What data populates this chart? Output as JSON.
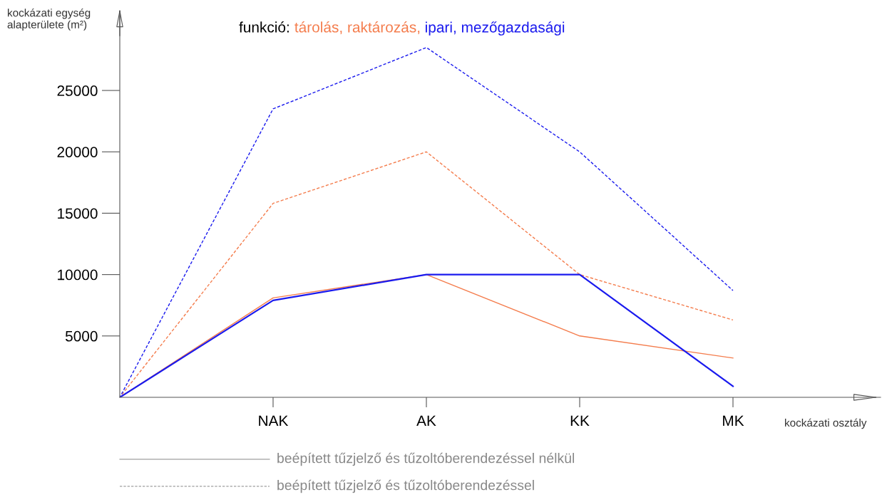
{
  "chart_data": {
    "type": "line",
    "title": "funkció:",
    "xlabel": "kockázati osztály",
    "ylabel": "kockázati egység\nalapterülete (m²)",
    "categories": [
      null,
      "NAK",
      "AK",
      "KK",
      "MK"
    ],
    "series": [
      {
        "color": "#f47c4c",
        "line_style": "solid",
        "values": [
          0,
          8100,
          10000,
          5000,
          3200
        ]
      },
      {
        "color": "#f47c4c",
        "line_style": "dashed",
        "values": [
          0,
          15800,
          20000,
          10000,
          6300
        ]
      },
      {
        "color": "#1a1aee",
        "line_style": "solid",
        "values": [
          0,
          7900,
          10000,
          10000,
          900
        ]
      },
      {
        "color": "#1a1aee",
        "line_style": "dashed",
        "values": [
          0,
          23500,
          28500,
          20000,
          8700
        ]
      }
    ],
    "annotations": [
      "tárolás, raktározás,",
      "ipari, mezőgazdasági",
      "beépített tűzjelző és tűzoltóberendezéssel nélkül",
      "beépített tűzjelző és tűzoltóberendezéssel"
    ],
    "ylim": [
      0,
      31500
    ],
    "yticks": [
      5000,
      10000,
      15000,
      20000,
      25000
    ],
    "grid": false,
    "legend": false,
    "marker": "none"
  }
}
